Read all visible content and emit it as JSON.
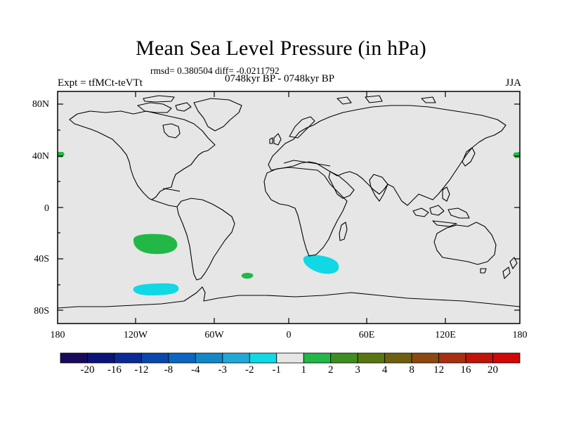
{
  "title": "Mean Sea Level Pressure (in hPa)",
  "stats": "rmsd= 0.380504 diff= -0.0211792",
  "experiment": "Expt = tfMCt-teVTt",
  "period": "0748kyr BP - 0748kyr BP",
  "season": "JJA",
  "lat_labels": [
    "80N",
    "40N",
    "0",
    "40S",
    "80S"
  ],
  "lon_labels": [
    "180",
    "120W",
    "60W",
    "0",
    "60E",
    "120E",
    "180"
  ],
  "colorbar": {
    "labels": [
      "-20",
      "-16",
      "-12",
      "-8",
      "-4",
      "-3",
      "-2",
      "-1",
      "1",
      "2",
      "3",
      "4",
      "8",
      "12",
      "16",
      "20"
    ],
    "colors": [
      "#1a0a5c",
      "#0b1478",
      "#0a2a96",
      "#0a48ae",
      "#0a66c2",
      "#1188c8",
      "#22a8d8",
      "#10d8e4",
      "#e6e6e6",
      "#22b848",
      "#3e8e22",
      "#5a7612",
      "#6e6010",
      "#8c4810",
      "#a83010",
      "#c01408",
      "#d00808"
    ]
  },
  "map": {
    "background": "#e6e6e6",
    "anomalies": [
      {
        "label": "2",
        "color": "#22b848"
      },
      {
        "label": "-1",
        "color": "#10d8e4"
      }
    ]
  }
}
